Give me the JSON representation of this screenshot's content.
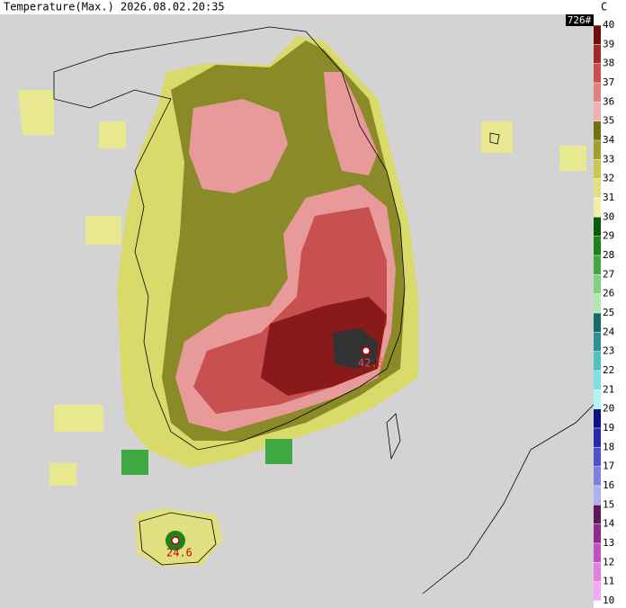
{
  "header": {
    "title": "Temperature(Max.) 2026.08.02.20:35",
    "unit": "C",
    "count": "726#"
  },
  "colorbar": {
    "ticks": [
      10,
      11,
      12,
      13,
      14,
      15,
      16,
      17,
      18,
      19,
      20,
      21,
      22,
      23,
      24,
      25,
      26,
      27,
      28,
      29,
      30,
      31,
      32,
      33,
      34,
      35,
      36,
      37,
      38,
      39,
      40
    ],
    "colors": [
      "#f4a8f4",
      "#e080e0",
      "#c050c0",
      "#902890",
      "#5a1a5a",
      "#b0b0f0",
      "#8080e0",
      "#5050c8",
      "#2828a8",
      "#101080",
      "#b0f4f4",
      "#80e0e0",
      "#50c0c0",
      "#309090",
      "#1a6a6a",
      "#b0e8b0",
      "#80d080",
      "#40a840",
      "#208020",
      "#0a5a0a",
      "#f0f0a8",
      "#e0e080",
      "#c8c850",
      "#a0a030",
      "#707018",
      "#f0b0b0",
      "#e08080",
      "#c85050",
      "#a02828",
      "#6a1010"
    ]
  },
  "annotations": [
    {
      "label": "42.5"
    },
    {
      "label": "24.6"
    }
  ]
}
